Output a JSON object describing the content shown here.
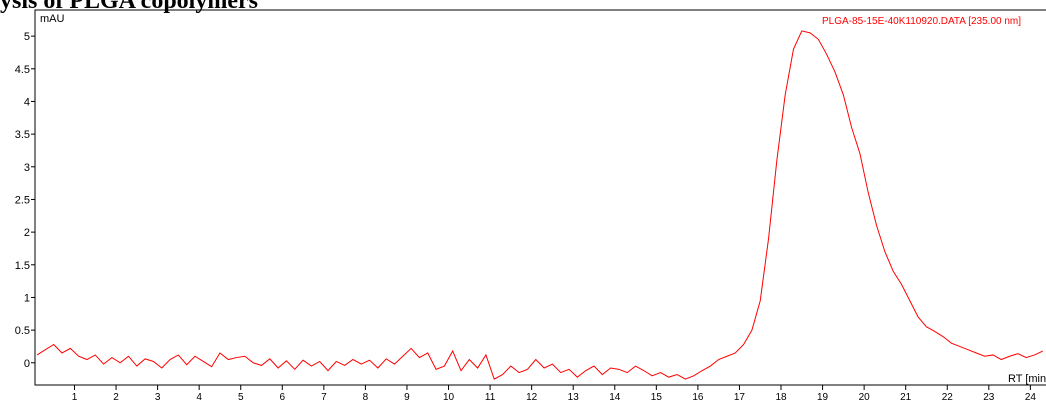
{
  "chart_data": {
    "type": "line",
    "title": "ysis of PLGA copolymers",
    "y_label": "mAU",
    "x_label": "RT [min]",
    "xlim": [
      0.05,
      24.4
    ],
    "ylim": [
      -0.34,
      5.4
    ],
    "xticks": [
      1,
      2,
      3,
      4,
      5,
      6,
      7,
      8,
      9,
      10,
      11,
      12,
      13,
      14,
      15,
      16,
      17,
      18,
      19,
      20,
      21,
      22,
      23,
      24
    ],
    "yticks": [
      0,
      0.5,
      1,
      1.5,
      2,
      2.5,
      3,
      3.5,
      4,
      4.5,
      5
    ],
    "x": [
      0.1,
      0.3,
      0.5,
      0.7,
      0.9,
      1.1,
      1.3,
      1.5,
      1.7,
      1.9,
      2.1,
      2.3,
      2.5,
      2.7,
      2.9,
      3.1,
      3.3,
      3.5,
      3.7,
      3.9,
      4.1,
      4.3,
      4.5,
      4.7,
      4.9,
      5.1,
      5.3,
      5.5,
      5.7,
      5.9,
      6.1,
      6.3,
      6.5,
      6.7,
      6.9,
      7.1,
      7.3,
      7.5,
      7.7,
      7.9,
      8.1,
      8.3,
      8.5,
      8.7,
      8.9,
      9.1,
      9.3,
      9.5,
      9.7,
      9.9,
      10.1,
      10.3,
      10.5,
      10.7,
      10.9,
      11.1,
      11.3,
      11.5,
      11.7,
      11.9,
      12.1,
      12.3,
      12.5,
      12.7,
      12.9,
      13.1,
      13.3,
      13.5,
      13.7,
      13.9,
      14.1,
      14.3,
      14.5,
      14.7,
      14.9,
      15.1,
      15.3,
      15.5,
      15.7,
      15.9,
      16.1,
      16.3,
      16.5,
      16.7,
      16.9,
      17.1,
      17.3,
      17.5,
      17.7,
      17.9,
      18.1,
      18.3,
      18.5,
      18.7,
      18.9,
      19.1,
      19.3,
      19.5,
      19.7,
      19.9,
      20.1,
      20.3,
      20.5,
      20.7,
      20.9,
      21.1,
      21.3,
      21.5,
      21.7,
      21.9,
      22.1,
      22.3,
      22.5,
      22.7,
      22.9,
      23.1,
      23.3,
      23.5,
      23.7,
      23.9,
      24.1,
      24.3
    ],
    "series": [
      {
        "name": "PLGA-85-15E-40K110920.DATA [235.00 nm]",
        "color": "#ff0000",
        "values": [
          0.12,
          0.2,
          0.28,
          0.15,
          0.22,
          0.1,
          0.05,
          0.12,
          -0.02,
          0.08,
          0.0,
          0.1,
          -0.05,
          0.06,
          0.02,
          -0.08,
          0.05,
          0.12,
          -0.03,
          0.1,
          0.02,
          -0.06,
          0.15,
          0.05,
          0.08,
          0.1,
          0.0,
          -0.04,
          0.06,
          -0.08,
          0.03,
          -0.1,
          0.04,
          -0.05,
          0.02,
          -0.12,
          0.02,
          -0.04,
          0.05,
          -0.02,
          0.04,
          -0.08,
          0.06,
          -0.02,
          0.1,
          0.22,
          0.08,
          0.15,
          -0.1,
          -0.05,
          0.18,
          -0.12,
          0.05,
          -0.08,
          0.12,
          -0.25,
          -0.18,
          -0.05,
          -0.15,
          -0.1,
          0.05,
          -0.08,
          -0.02,
          -0.15,
          -0.1,
          -0.22,
          -0.12,
          -0.05,
          -0.18,
          -0.08,
          -0.1,
          -0.15,
          -0.05,
          -0.12,
          -0.2,
          -0.15,
          -0.22,
          -0.18,
          -0.25,
          -0.2,
          -0.12,
          -0.05,
          0.05,
          0.1,
          0.15,
          0.28,
          0.5,
          0.95,
          1.9,
          3.1,
          4.1,
          4.8,
          5.08,
          5.05,
          4.95,
          4.72,
          4.45,
          4.1,
          3.6,
          3.2,
          2.6,
          2.1,
          1.7,
          1.4,
          1.2,
          0.95,
          0.7,
          0.55,
          0.48,
          0.4,
          0.3,
          0.25,
          0.2,
          0.15,
          0.1,
          0.12,
          0.05,
          0.1,
          0.14,
          0.08,
          0.12,
          0.18
        ]
      }
    ]
  }
}
